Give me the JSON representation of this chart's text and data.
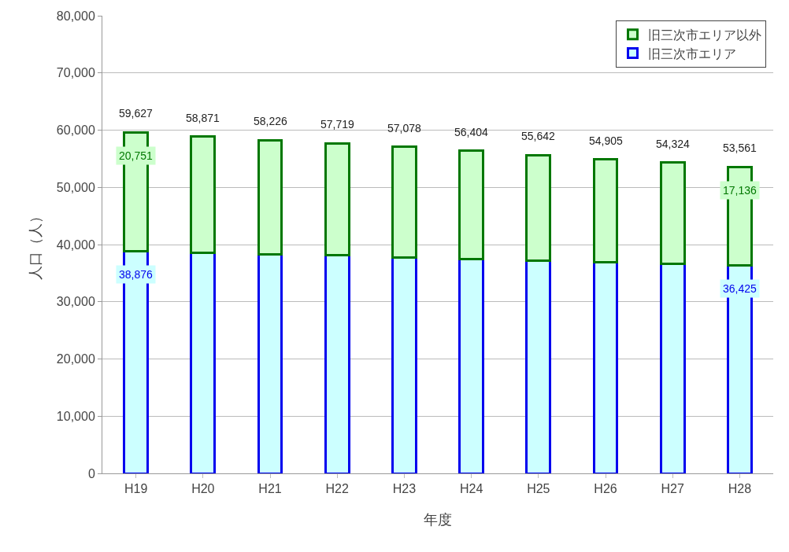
{
  "chart_data": {
    "type": "bar",
    "stacked": true,
    "xlabel": "年度",
    "ylabel": "人口（人）",
    "categories": [
      "H19",
      "H20",
      "H21",
      "H22",
      "H23",
      "H24",
      "H25",
      "H26",
      "H27",
      "H28"
    ],
    "series": [
      {
        "name": "旧三次市エリア",
        "color": "#ccffff",
        "values": [
          38876,
          38600,
          38300,
          38100,
          37800,
          37500,
          37200,
          36900,
          36700,
          36425
        ],
        "value_labels": [
          "38,876",
          null,
          null,
          null,
          null,
          null,
          null,
          null,
          null,
          "36,425"
        ]
      },
      {
        "name": "旧三次市エリア以外",
        "color": "#ccffcc",
        "values": [
          20751,
          20271,
          19926,
          19619,
          19278,
          18904,
          18442,
          18005,
          17624,
          17136
        ],
        "value_labels": [
          "20,751",
          null,
          null,
          null,
          null,
          null,
          null,
          null,
          null,
          "17,136"
        ]
      }
    ],
    "totals": [
      "59,627",
      "58,871",
      "58,226",
      "57,719",
      "57,078",
      "56,404",
      "55,642",
      "54,905",
      "54,324",
      "53,561"
    ],
    "ylim": [
      0,
      80000
    ],
    "yticks": [
      {
        "value": 0,
        "label": "0"
      },
      {
        "value": 10000,
        "label": "10,000"
      },
      {
        "value": 20000,
        "label": "20,000"
      },
      {
        "value": 30000,
        "label": "30,000"
      },
      {
        "value": 40000,
        "label": "40,000"
      },
      {
        "value": 50000,
        "label": "50,000"
      },
      {
        "value": 60000,
        "label": "60,000"
      },
      {
        "value": 70000,
        "label": "70,000"
      },
      {
        "value": 80000,
        "label": "80,000"
      }
    ],
    "grid": "y",
    "legend": "top right"
  }
}
